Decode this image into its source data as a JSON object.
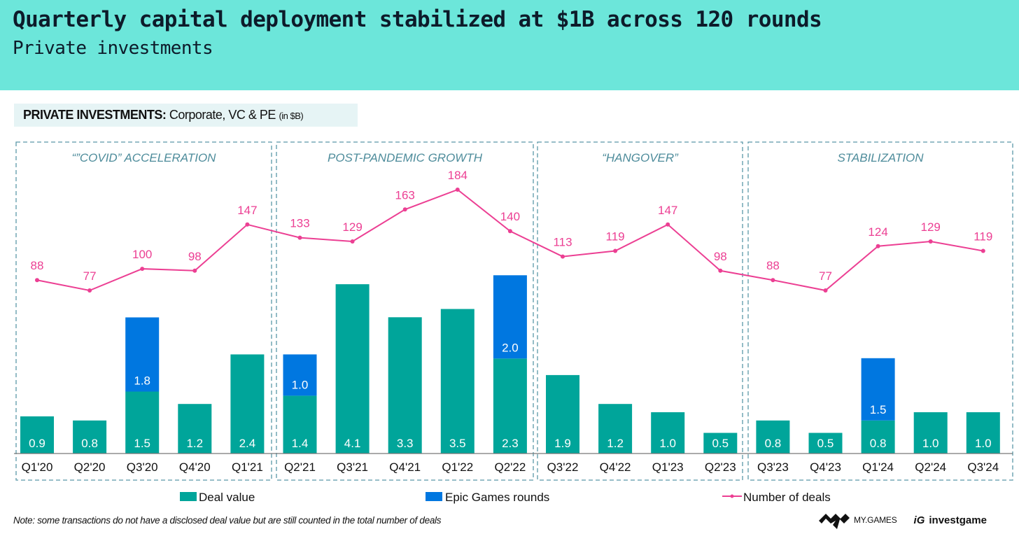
{
  "header": {
    "title": "Quarterly capital deployment stabilized at $1B across 120 rounds",
    "subtitle": "Private investments"
  },
  "chart_label": {
    "bold": "PRIVATE INVESTMENTS:",
    "regular": " Corporate, VC & PE ",
    "unit": "(in $B)"
  },
  "note": "Note: some transactions do not have a disclosed deal value but are still counted in the total number of deals",
  "logos": {
    "mygames": "MY.GAMES",
    "investgame": "investgame"
  },
  "chart_data": {
    "type": "bar",
    "stacked": true,
    "title": "PRIVATE INVESTMENTS: Corporate, VC & PE (in $B)",
    "xlabel": "",
    "ylabel": "",
    "categories": [
      "Q1'20",
      "Q2'20",
      "Q3'20",
      "Q4'20",
      "Q1'21",
      "Q2'21",
      "Q3'21",
      "Q4'21",
      "Q1'22",
      "Q2'22",
      "Q3'22",
      "Q4'22",
      "Q1'23",
      "Q2'23",
      "Q3'23",
      "Q4'23",
      "Q1'24",
      "Q2'24",
      "Q3'24"
    ],
    "series": [
      {
        "name": "Deal value",
        "type": "bar",
        "color": "#00a59a",
        "values": [
          0.9,
          0.8,
          1.5,
          1.2,
          2.4,
          1.4,
          4.1,
          3.3,
          3.5,
          2.3,
          1.9,
          1.2,
          1.0,
          0.5,
          0.8,
          0.5,
          0.8,
          1.0,
          1.0
        ]
      },
      {
        "name": "Epic Games rounds",
        "type": "bar",
        "color": "#0077e0",
        "values": [
          0,
          0,
          1.8,
          0,
          0,
          1.0,
          0,
          0,
          0,
          2.0,
          0,
          0,
          0,
          0,
          0,
          0,
          1.5,
          0,
          0
        ]
      },
      {
        "name": "Number of deals",
        "type": "line",
        "color": "#ec3f93",
        "axis": "secondary",
        "values": [
          88,
          77,
          100,
          98,
          147,
          133,
          129,
          163,
          184,
          140,
          113,
          119,
          147,
          98,
          88,
          77,
          124,
          129,
          119
        ]
      }
    ],
    "bar_display_values": {
      "Deal value": [
        "0.9",
        "0.8",
        "1.5",
        "1.2",
        "2.4",
        "1.4",
        "4.1",
        "3.3",
        "3.5",
        "2.3",
        "1.9",
        "1.2",
        "1.0",
        "0.5",
        "0.8",
        "0.5",
        "0.8",
        "1.0",
        "1.0"
      ],
      "Epic Games rounds": [
        "",
        "",
        "1.8",
        "",
        "",
        "1.0",
        "",
        "",
        "",
        "2.0",
        "",
        "",
        "",
        "",
        "",
        "",
        "1.5",
        "",
        ""
      ]
    },
    "periods": [
      {
        "label": "“”COVID” ACCELERATION",
        "start": 0,
        "end": 4
      },
      {
        "label": "POST-PANDEMIC GROWTH",
        "start": 5,
        "end": 9
      },
      {
        "label": "“HANGOVER”",
        "start": 10,
        "end": 13
      },
      {
        "label": "STABILIZATION",
        "start": 14,
        "end": 18
      }
    ],
    "ylim": [
      0,
      4.5
    ],
    "ylim_secondary": [
      0,
      200
    ],
    "grid": false,
    "legend": {
      "placement": "bottom",
      "items": [
        "Deal value",
        "Epic Games rounds",
        "Number of deals"
      ]
    }
  }
}
